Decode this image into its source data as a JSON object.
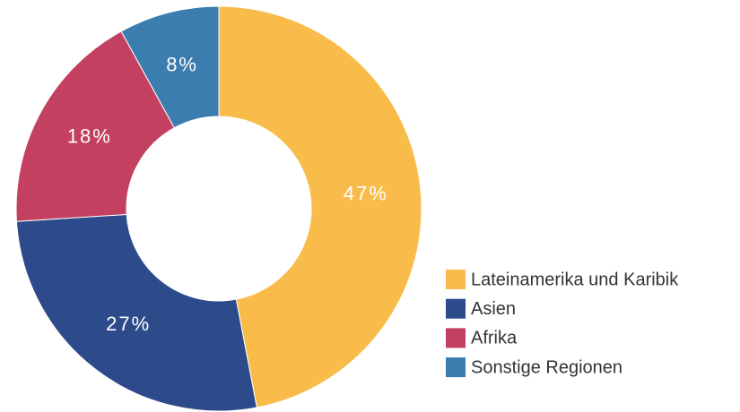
{
  "chart_data": {
    "type": "donut",
    "categories": [
      "Lateinamerika und Karibik",
      "Asien",
      "Afrika",
      "Sonstige Regionen"
    ],
    "values": [
      47,
      27,
      18,
      8
    ],
    "value_labels": [
      "47%",
      "27%",
      "18%",
      "8%"
    ],
    "colors": [
      "#F9BC4A",
      "#2D4A8A",
      "#C44060",
      "#3A7DAE"
    ],
    "legend": "bottom-right"
  }
}
